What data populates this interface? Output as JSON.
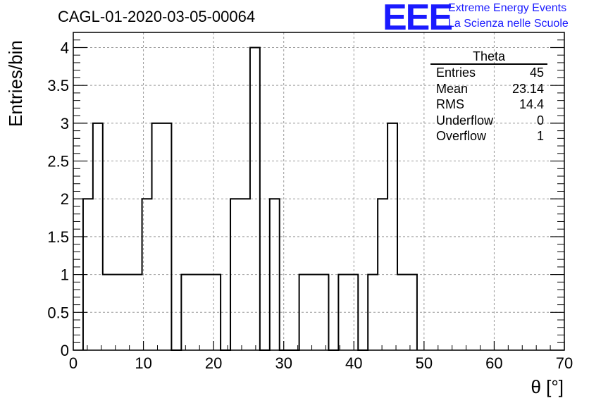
{
  "title": "CAGL-01-2020-03-05-00064",
  "logo": {
    "mark": "EEE",
    "line1": "Extreme Energy Events",
    "line2": "La Scienza nelle Scuole"
  },
  "stats": {
    "title": "Theta",
    "rows": [
      {
        "label": "Entries",
        "value": "45"
      },
      {
        "label": "Mean",
        "value": "23.14"
      },
      {
        "label": "RMS",
        "value": "14.4"
      },
      {
        "label": "Underflow",
        "value": "0"
      },
      {
        "label": "Overflow",
        "value": "1"
      }
    ]
  },
  "chart_data": {
    "type": "bar",
    "histogram": true,
    "title": "CAGL-01-2020-03-05-00064",
    "xlabel": "θ [°]",
    "ylabel": "Entries/bin",
    "xlim": [
      0,
      70
    ],
    "ylim": [
      0,
      4.2
    ],
    "grid": true,
    "xticks": [
      "0",
      "10",
      "20",
      "30",
      "40",
      "50",
      "60",
      "70"
    ],
    "yticks": [
      "0",
      "0.5",
      "1",
      "1.5",
      "2",
      "2.5",
      "3",
      "3.5",
      "4"
    ],
    "bins": [
      [
        1.4,
        2.8,
        2
      ],
      [
        2.8,
        4.2,
        3
      ],
      [
        4.2,
        5.6,
        1
      ],
      [
        5.6,
        7.0,
        1
      ],
      [
        7.0,
        8.4,
        1
      ],
      [
        8.4,
        9.8,
        1
      ],
      [
        9.8,
        11.2,
        2
      ],
      [
        11.2,
        12.6,
        3
      ],
      [
        12.6,
        14.0,
        3
      ],
      [
        14.0,
        15.4,
        0
      ],
      [
        15.4,
        16.8,
        1
      ],
      [
        16.8,
        18.2,
        1
      ],
      [
        18.2,
        19.6,
        1
      ],
      [
        19.6,
        21.0,
        1
      ],
      [
        21.0,
        22.4,
        0
      ],
      [
        22.4,
        23.8,
        2
      ],
      [
        23.8,
        25.2,
        2
      ],
      [
        25.2,
        26.6,
        4
      ],
      [
        26.6,
        28.0,
        0
      ],
      [
        28.0,
        29.4,
        2
      ],
      [
        29.4,
        30.8,
        0
      ],
      [
        30.8,
        32.2,
        0
      ],
      [
        32.2,
        33.6,
        1
      ],
      [
        33.6,
        35.0,
        1
      ],
      [
        35.0,
        36.4,
        1
      ],
      [
        36.4,
        37.8,
        0
      ],
      [
        37.8,
        39.2,
        1
      ],
      [
        39.2,
        40.6,
        1
      ],
      [
        40.6,
        42.0,
        0
      ],
      [
        42.0,
        43.4,
        1
      ],
      [
        43.4,
        44.8,
        2
      ],
      [
        44.8,
        46.2,
        3
      ],
      [
        46.2,
        47.6,
        1
      ],
      [
        47.6,
        49.0,
        1
      ]
    ]
  }
}
